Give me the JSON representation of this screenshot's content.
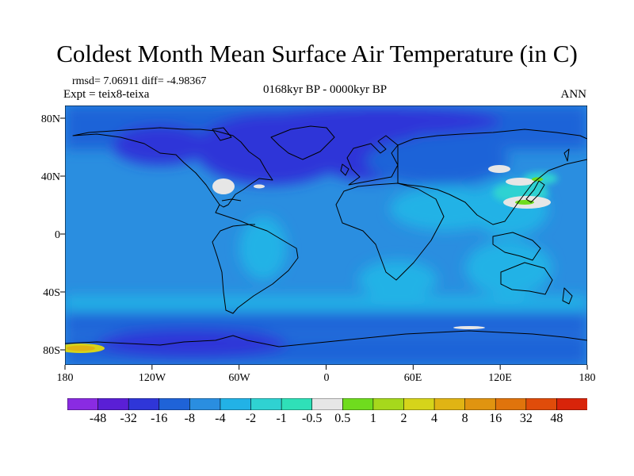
{
  "title": "Coldest Month Mean Surface Air Temperature (in C)",
  "stats": "rmsd= 7.06911 diff= -4.98367",
  "expt": "Expt = teix8-teixa",
  "period": "0168kyr BP - 0000kyr BP",
  "season": "ANN",
  "axes": {
    "y_ticks": [
      "80N",
      "40N",
      "0",
      "40S",
      "80S"
    ],
    "x_ticks": [
      "180",
      "120W",
      "60W",
      "0",
      "60E",
      "120E",
      "180"
    ]
  },
  "colorbar": {
    "labels": [
      "-48",
      "-32",
      "-16",
      "-8",
      "-4",
      "-2",
      "-1",
      "-0.5",
      "0.5",
      "1",
      "2",
      "4",
      "8",
      "16",
      "32",
      "48"
    ],
    "colors": [
      "#8a2be2",
      "#5a1fd6",
      "#2f36d8",
      "#1f63d8",
      "#2a8ee0",
      "#22b2e6",
      "#2fd2d2",
      "#2fe0b8",
      "#e6e6e6",
      "#6fdc1e",
      "#a6d81c",
      "#d6d41a",
      "#e0b414",
      "#e09410",
      "#e0740c",
      "#e04c0a",
      "#d8240a"
    ]
  }
}
